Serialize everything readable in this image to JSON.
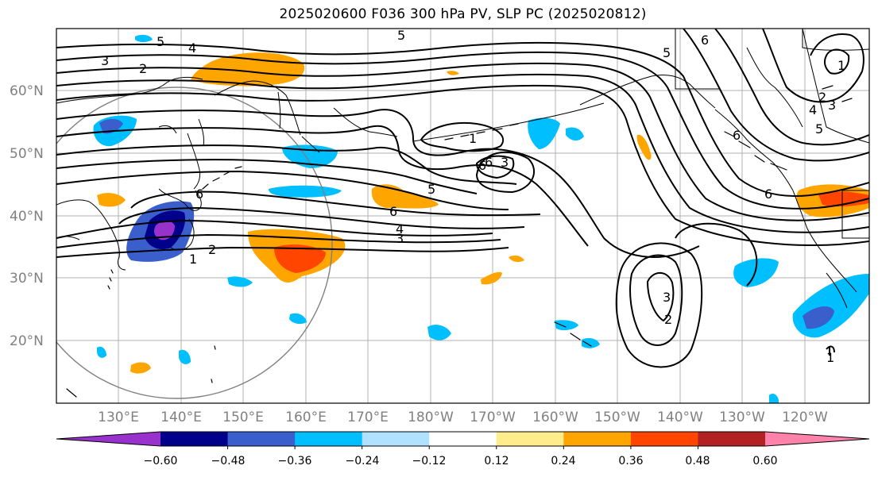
{
  "title": "2025020600 F036 300 hPa PV, SLP PC (2025020812)",
  "map": {
    "lat_ticks": [
      "60°N",
      "50°N",
      "40°N",
      "30°N",
      "20°N"
    ],
    "lon_ticks": [
      "130°E",
      "140°E",
      "150°E",
      "160°E",
      "170°E",
      "180°W",
      "170°W",
      "160°W",
      "150°W",
      "140°W",
      "130°W",
      "120°W"
    ],
    "contour_labels": [
      "5",
      "4",
      "3",
      "2",
      "1",
      "6",
      "5",
      "6",
      "3",
      "6",
      "5",
      "6",
      "4",
      "3",
      "2",
      "1",
      "3",
      "2",
      "6",
      "6",
      "5",
      "1",
      "2",
      "3",
      "4",
      "5",
      "6",
      "1"
    ]
  },
  "colorbar": {
    "ticks": [
      "−0.60",
      "−0.48",
      "−0.36",
      "−0.24",
      "−0.12",
      "0.12",
      "0.24",
      "0.36",
      "0.48",
      "0.60"
    ],
    "colors": [
      "#9932cc",
      "#00008b",
      "#3a5fcd",
      "#00bfff",
      "#b0e2ff",
      "#ffffff",
      "#ffec8b",
      "#ffa500",
      "#ff4500",
      "#b22222",
      "#ff82ab"
    ]
  }
}
